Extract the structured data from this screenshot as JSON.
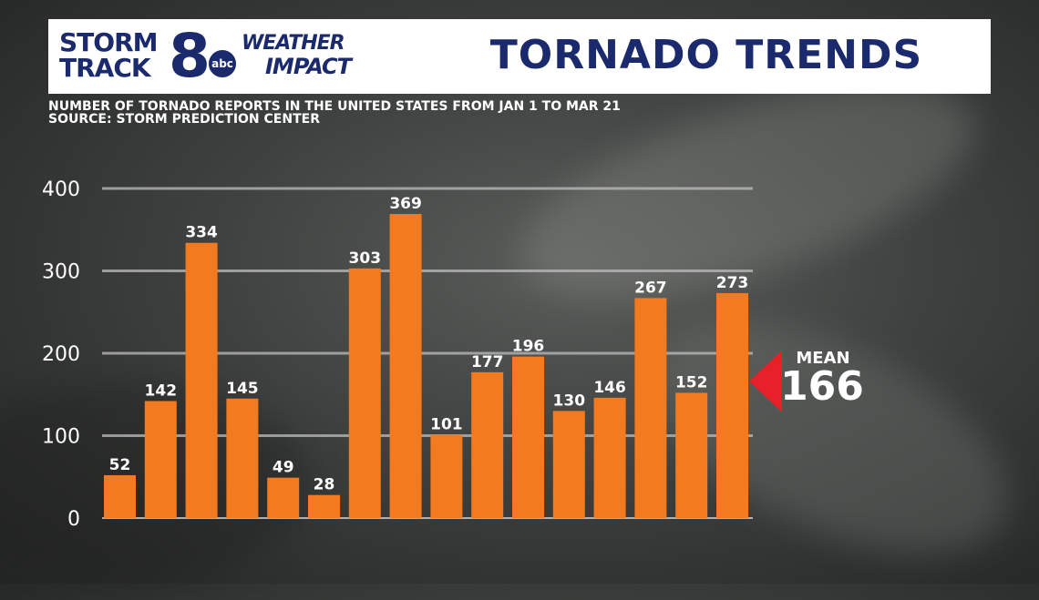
{
  "header": {
    "logo_storm": "STORM",
    "logo_track": "TRACK",
    "logo_eight": "8",
    "logo_abc": "abc",
    "logo_weather": "WEATHER",
    "logo_impact": "IMPACT",
    "title": "TORNADO TRENDS"
  },
  "subtitle": {
    "line1": "NUMBER OF TORNADO REPORTS IN THE UNITED STATES FROM JAN 1 TO MAR 21",
    "line2": "SOURCE: STORM PREDICTION CENTER"
  },
  "mean": {
    "label": "MEAN",
    "value": "166",
    "y": 166,
    "color": "#e8202a"
  },
  "colors": {
    "bar": "#f47a20",
    "grid": "#bdbdbd",
    "text": "#ffffff",
    "title": "#1a2a6c"
  },
  "chart_data": {
    "type": "bar",
    "values": [
      52,
      142,
      334,
      145,
      49,
      28,
      303,
      369,
      101,
      177,
      196,
      130,
      146,
      267,
      152,
      273
    ],
    "data_labels": [
      "52",
      "142",
      "334",
      "145",
      "49",
      "28",
      "303",
      "369",
      "101",
      "177",
      "196",
      "130",
      "146",
      "267",
      "152",
      "273"
    ],
    "yticks": [
      0,
      100,
      200,
      300,
      400
    ],
    "ytick_labels": [
      "0",
      "100",
      "200",
      "300",
      "400"
    ],
    "ylim": [
      0,
      400
    ],
    "grid": true,
    "title": "TORNADO TRENDS",
    "xlabel": "",
    "ylabel": ""
  }
}
